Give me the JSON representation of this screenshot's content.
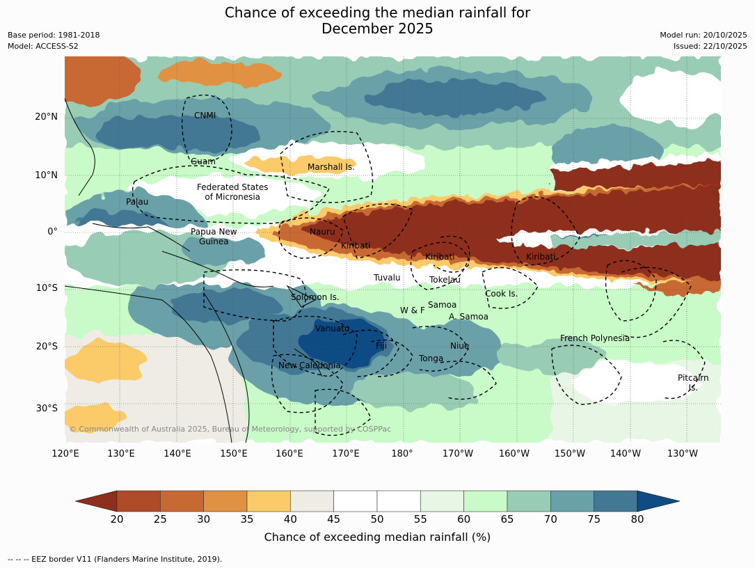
{
  "title_line1": "Chance of exceeding the median rainfall for",
  "title_line2": "December 2025",
  "base_period": "Base period: 1981-2018",
  "model": "Model: ACCESS-S2",
  "model_run": "Model run: 20/10/2025",
  "issued": "Issued: 22/10/2025",
  "lat_labels": [
    "20°N",
    "10°N",
    "0°",
    "10°S",
    "20°S",
    "30°S"
  ],
  "lon_labels": [
    "120°E",
    "130°E",
    "140°E",
    "150°E",
    "160°E",
    "170°E",
    "180°",
    "170°W",
    "160°W",
    "150°W",
    "140°W",
    "130°W"
  ],
  "regions": {
    "cnmi": "CNMI",
    "guam": "Guam",
    "marshall": "Marshall Is.",
    "fsm_1": "Federated States",
    "fsm_2": "of Micronesia",
    "palau": "Palau",
    "png_1": "Papua New",
    "png_2": "Guinea",
    "nauru": "Nauru",
    "kiribati_w": "Kiribati",
    "kiribati_c": "Kiribati",
    "kiribati_e": "Kiribati",
    "tuvalu": "Tuvalu",
    "tokelau": "Tokelau",
    "cook": "Cook Is.",
    "solomon": "Solomon Is.",
    "samoa": "Samoa",
    "wf": "W & F",
    "am_samoa": "A. Samoa",
    "vanuatu": "Vanuatu",
    "fiji": "Fiji",
    "niue": "Niue",
    "tonga": "Tonga",
    "french_polynesia": "French Polynesia",
    "new_caledonia": "New Caledonia",
    "pitcairn_1": "Pitcairn",
    "pitcairn_2": "Is."
  },
  "copyright": "© Commonwealth of Australia 2025, Bureau of Meteorology, supported by COSPPac",
  "colorbar": {
    "ticks": [
      "20",
      "25",
      "30",
      "35",
      "40",
      "45",
      "50",
      "55",
      "60",
      "65",
      "70",
      "75",
      "80"
    ],
    "colors": [
      "#8e2f1e",
      "#b04b27",
      "#c86832",
      "#e09142",
      "#fbcb69",
      "#efece6",
      "#ffffff",
      "#ffffff",
      "#e8f6e6",
      "#c8fbc8",
      "#99ccb4",
      "#6aa1a8",
      "#437894",
      "#0f4c84"
    ],
    "label": "Chance of exceeding median rainfall (%)"
  },
  "footer": "--  --  -- EEZ border V11 (Flanders Marine Institute, 2019)."
}
